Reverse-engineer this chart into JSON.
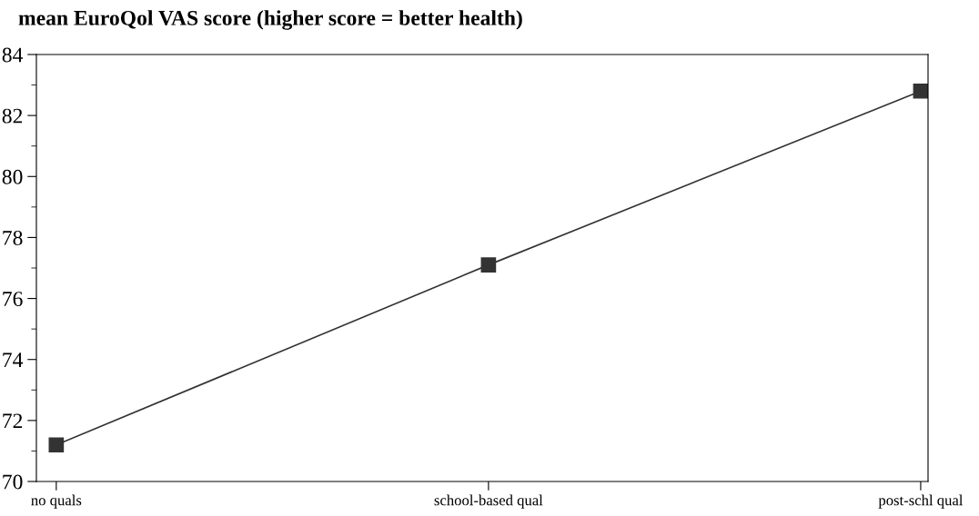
{
  "chart_data": {
    "type": "line",
    "title": "mean EuroQol VAS score (higher score = better health)",
    "categories": [
      "no quals",
      "school-based qual",
      "post-schl qual"
    ],
    "series": [
      {
        "color": "#333333",
        "values": [
          71.2,
          77.1,
          82.8
        ]
      }
    ],
    "ylim": [
      70,
      84
    ],
    "yticks": [
      70,
      72,
      74,
      76,
      78,
      80,
      82,
      84
    ],
    "marker": "square",
    "line_style": "solid",
    "grid": false,
    "legend": false
  }
}
